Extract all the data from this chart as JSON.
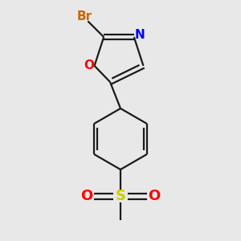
{
  "background_color": "#e8e8e8",
  "bond_color": "#1a1a1a",
  "bond_width": 1.6,
  "atom_colors": {
    "Br": "#cc6600",
    "O": "#ff0000",
    "N": "#0000ff",
    "S": "#cccc00",
    "C": "#1a1a1a"
  },
  "figsize": [
    3.0,
    3.0
  ],
  "dpi": 100
}
